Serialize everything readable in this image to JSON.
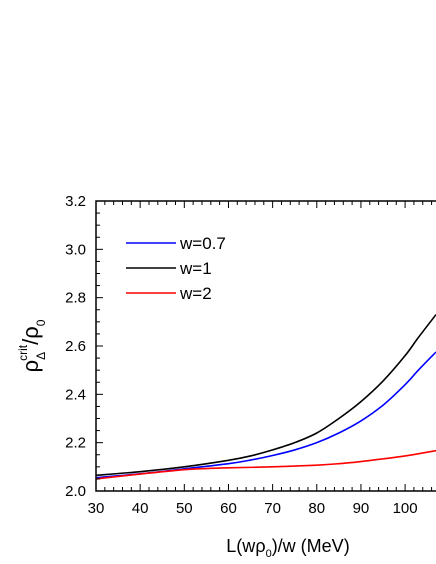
{
  "chart_data": {
    "type": "line",
    "xlabel": {
      "main": "L(w",
      "rho": "ρ",
      "sub": "0",
      "rest": ")/w (MeV)"
    },
    "ylabel": {
      "rho": "ρ",
      "sub": "Δ",
      "sup": "crit",
      "slash": "/",
      "rho2": "ρ",
      "sub2": "0"
    },
    "xlim": [
      30,
      107
    ],
    "ylim": [
      2.0,
      3.2
    ],
    "xticks": [
      30,
      40,
      50,
      60,
      70,
      80,
      90,
      100
    ],
    "yticks": [
      "2.0",
      "2.2",
      "2.4",
      "2.6",
      "2.8",
      "3.0",
      "3.2"
    ],
    "legend_position": "top-left",
    "series": [
      {
        "name": "w=0.7",
        "color": "#0000ff",
        "x": [
          30,
          40,
          50,
          60,
          65,
          70,
          75,
          80,
          85,
          90,
          95,
          100,
          103,
          107
        ],
        "y": [
          2.055,
          2.071,
          2.092,
          2.113,
          2.128,
          2.147,
          2.17,
          2.2,
          2.24,
          2.29,
          2.355,
          2.44,
          2.5,
          2.575
        ]
      },
      {
        "name": "w=1",
        "color": "#000000",
        "x": [
          30,
          40,
          50,
          60,
          65,
          70,
          75,
          80,
          85,
          90,
          95,
          100,
          103,
          107
        ],
        "y": [
          2.065,
          2.08,
          2.1,
          2.127,
          2.145,
          2.17,
          2.2,
          2.24,
          2.3,
          2.37,
          2.455,
          2.56,
          2.635,
          2.73
        ]
      },
      {
        "name": "w=2",
        "color": "#ff0000",
        "x": [
          30,
          40,
          50,
          55,
          60,
          70,
          80,
          85,
          90,
          95,
          100,
          107
        ],
        "y": [
          2.05,
          2.07,
          2.088,
          2.093,
          2.096,
          2.1,
          2.107,
          2.113,
          2.122,
          2.133,
          2.145,
          2.167
        ]
      }
    ]
  }
}
